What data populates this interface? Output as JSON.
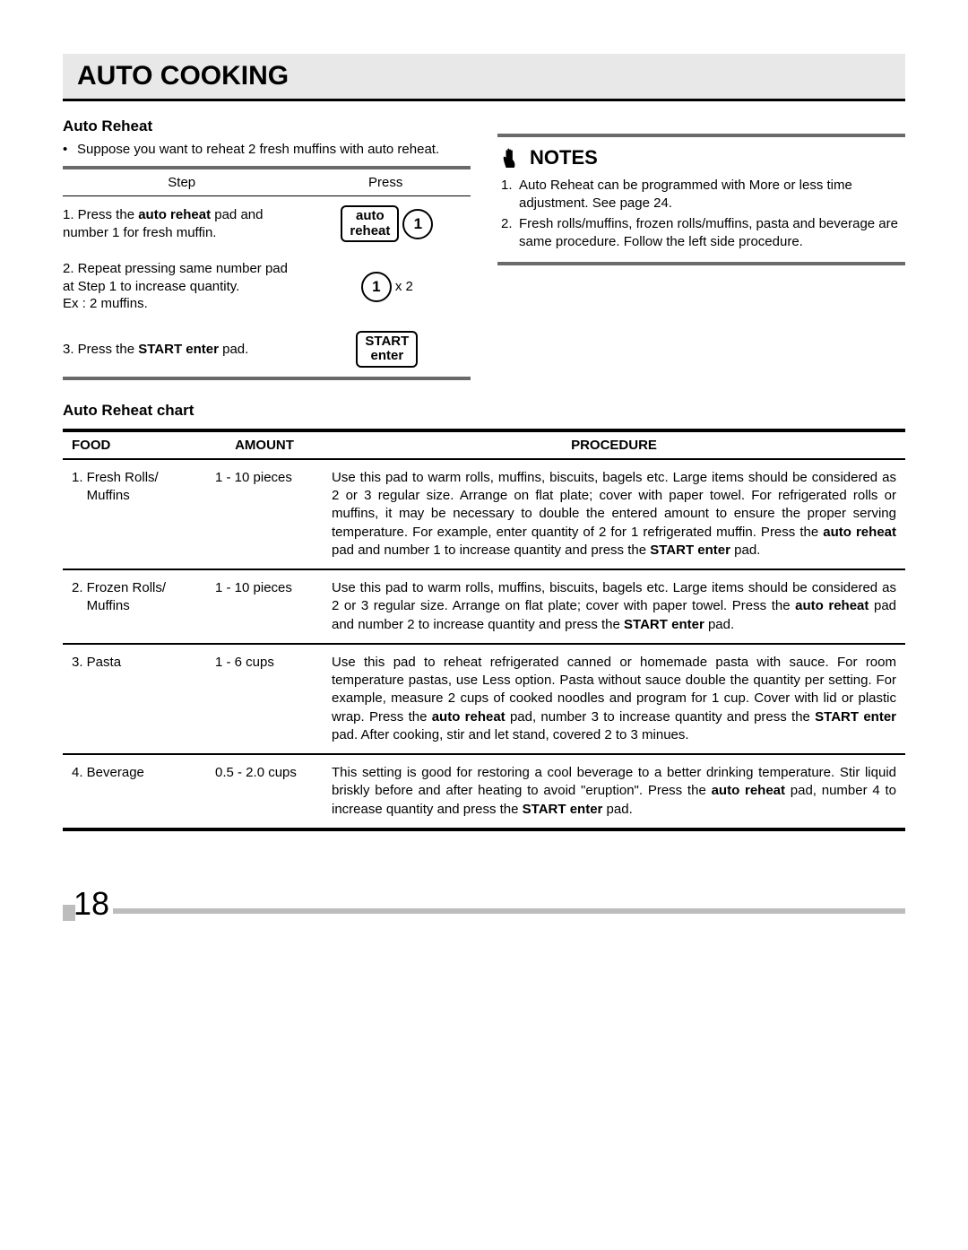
{
  "page": {
    "title": "AUTO COOKING",
    "number": "18"
  },
  "autoReheat": {
    "heading": "Auto Reheat",
    "intro": "Suppose you want to reheat 2 fresh muffins with auto reheat.",
    "tableHead": {
      "step": "Step",
      "press": "Press"
    },
    "rows": [
      {
        "text_pre": "1. Press the ",
        "text_bold": "auto reheat",
        "text_post": " pad and number 1 for fresh muffin.",
        "pad1_line1": "auto",
        "pad1_line2": "reheat",
        "pad2": "1"
      },
      {
        "text": "2. Repeat pressing same number pad at Step 1 to increase quantity.\nEx : 2 muffins.",
        "pad": "1",
        "mult": "x 2"
      },
      {
        "text_pre": "3. Press the ",
        "text_bold": "START enter",
        "text_post": " pad.",
        "pad_line1": "START",
        "pad_line2": "enter"
      }
    ]
  },
  "notes": {
    "title": "NOTES",
    "items": [
      {
        "n": "1.",
        "t": "Auto Reheat can be programmed with More or less time adjustment. See page 24."
      },
      {
        "n": "2.",
        "t": "Fresh rolls/muffins, frozen rolls/muffins, pasta and beverage are same procedure. Follow the left side procedure."
      }
    ]
  },
  "chart": {
    "heading": "Auto Reheat chart",
    "head": {
      "food": "FOOD",
      "amount": "AMOUNT",
      "procedure": "PROCEDURE"
    },
    "rows": [
      {
        "food": "1. Fresh Rolls/\n    Muffins",
        "amount": "1 - 10 pieces",
        "proc_parts": [
          {
            "t": "Use this pad to warm rolls, muffins, biscuits, bagels etc. Large items should be considered as 2 or 3 regular size. Arrange on flat plate; cover with paper towel. For refrigerated rolls or muffins, it may be necessary to double the entered amount to ensure the proper serving temperature. For example, enter quantity of 2 for 1 refrigerated muffin. Press the "
          },
          {
            "b": "auto reheat"
          },
          {
            "t": " pad and number 1 to increase quantity and press the "
          },
          {
            "b": "START enter"
          },
          {
            "t": " pad."
          }
        ]
      },
      {
        "food": "2. Frozen Rolls/\n    Muffins",
        "amount": "1 - 10 pieces",
        "proc_parts": [
          {
            "t": "Use this pad to warm rolls, muffins, biscuits, bagels etc. Large items should be considered as 2 or 3 regular size. Arrange on flat plate; cover with paper towel. Press the "
          },
          {
            "b": "auto reheat"
          },
          {
            "t": " pad and number 2 to increase quantity and press the "
          },
          {
            "b": "START enter"
          },
          {
            "t": " pad."
          }
        ]
      },
      {
        "food": "3. Pasta",
        "amount": "1 - 6 cups",
        "proc_parts": [
          {
            "t": "Use this pad to reheat refrigerated canned or homemade pasta with sauce. For room temperature pastas, use Less option. Pasta without sauce double the quantity per setting. For example, measure 2 cups of cooked noodles and program for 1 cup. Cover with lid or plastic wrap. Press the "
          },
          {
            "b": "auto reheat"
          },
          {
            "t": " pad, number 3 to increase quantity and press the "
          },
          {
            "b": "START enter"
          },
          {
            "t": " pad. After cooking, stir and let stand, covered 2 to 3 minues."
          }
        ]
      },
      {
        "food": "4. Beverage",
        "amount": "0.5 - 2.0 cups",
        "proc_parts": [
          {
            "t": "This setting is good for restoring a cool beverage to a better drinking temperature. Stir liquid briskly before and after heating to avoid \"eruption\". Press the "
          },
          {
            "b": "auto reheat"
          },
          {
            "t": " pad, number 4 to increase quantity and press the "
          },
          {
            "b": "START enter"
          },
          {
            "t": " pad."
          }
        ]
      }
    ]
  }
}
